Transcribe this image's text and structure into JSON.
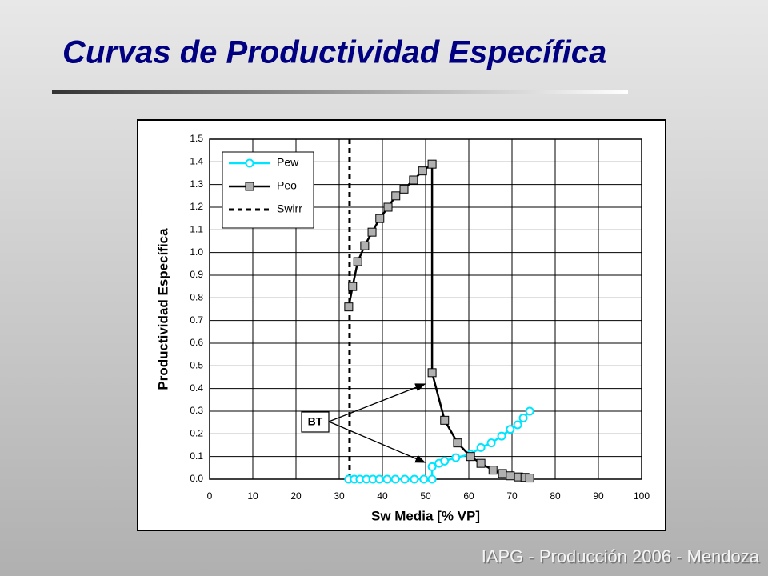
{
  "title": "Curvas de Productividad Específica",
  "footer": "IAPG - Producción 2006 - Mendoza",
  "chart_data": {
    "type": "line",
    "xlabel": "Sw Media [% VP]",
    "ylabel": "Productividad Específica",
    "xlim": [
      0,
      100
    ],
    "xticks": [
      0,
      10,
      20,
      30,
      40,
      50,
      60,
      70,
      80,
      90,
      100
    ],
    "ylim": [
      0,
      1.5
    ],
    "yticks": [
      {
        "value": 0,
        "label": "0.0"
      },
      0.1,
      0.2,
      0.3,
      0.4,
      0.5,
      0.6,
      0.7,
      0.8,
      0.9,
      {
        "value": 1,
        "label": "1.0"
      },
      1.1,
      1.2,
      1.3,
      1.4,
      1.5
    ],
    "grid": true,
    "legend": "upper left",
    "series": [
      {
        "name": "Pew",
        "color": "#00e5ff",
        "marker": "circle",
        "x": [
          32.2,
          33.5,
          34.8,
          36.3,
          37.8,
          39.3,
          41.1,
          43,
          45.2,
          47.4,
          49.6,
          51.5,
          51.5,
          53.1,
          54.4,
          57,
          60.4,
          62.8,
          65.2,
          67.6,
          69.6,
          71.3,
          72.6,
          74.1
        ],
        "values": [
          0,
          0,
          0,
          0,
          0,
          0,
          0,
          0,
          0,
          0,
          0,
          0,
          0.055,
          0.07,
          0.08,
          0.095,
          0.11,
          0.14,
          0.16,
          0.19,
          0.22,
          0.24,
          0.27,
          0.3
        ]
      },
      {
        "name": "Peo",
        "color": "#000000",
        "marker": "square",
        "x": [
          32.2,
          33.1,
          34.3,
          35.9,
          37.6,
          39.4,
          41.3,
          43.1,
          45,
          47.2,
          49.3,
          51.5,
          51.5,
          54.4,
          57.4,
          60.4,
          62.8,
          65.6,
          67.8,
          69.6,
          71.5,
          73,
          74.1
        ],
        "values": [
          0.76,
          0.85,
          0.96,
          1.03,
          1.09,
          1.15,
          1.2,
          1.25,
          1.28,
          1.32,
          1.36,
          1.39,
          0.47,
          0.26,
          0.16,
          0.1,
          0.07,
          0.04,
          0.025,
          0.015,
          0.01,
          0.008,
          0.005
        ]
      }
    ],
    "vlines": [
      {
        "name": "Swirr",
        "x": 32.4,
        "color": "#000000",
        "style": "dashed"
      }
    ],
    "annotations": [
      {
        "text": "BT"
      }
    ]
  }
}
